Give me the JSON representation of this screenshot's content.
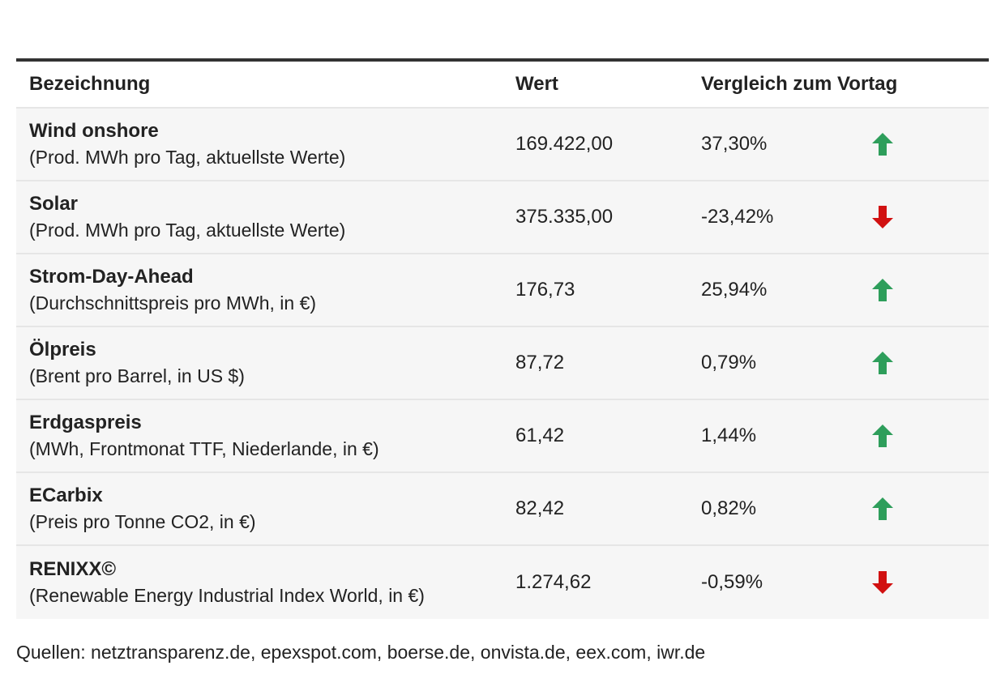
{
  "chart_data": {
    "type": "table",
    "columns": [
      "Bezeichnung",
      "Wert",
      "Vergleich zum Vortag"
    ],
    "rows": [
      {
        "name": "Wind onshore",
        "sub": "(Prod. MWh pro Tag, aktuellste Werte)",
        "value": "169.422,00",
        "change": "37,30%",
        "direction": "up"
      },
      {
        "name": "Solar",
        "sub": "(Prod. MWh pro Tag, aktuellste Werte)",
        "value": "375.335,00",
        "change": "-23,42%",
        "direction": "down"
      },
      {
        "name": "Strom-Day-Ahead",
        "sub": "(Durchschnittspreis pro MWh, in €)",
        "value": "176,73",
        "change": "25,94%",
        "direction": "up"
      },
      {
        "name": "Ölpreis",
        "sub": "(Brent pro Barrel, in US $)",
        "value": "87,72",
        "change": "0,79%",
        "direction": "up"
      },
      {
        "name": "Erdgaspreis",
        "sub": "(MWh, Frontmonat TTF, Niederlande, in €)",
        "value": "61,42",
        "change": "1,44%",
        "direction": "up"
      },
      {
        "name": "ECarbix",
        "sub": "(Preis pro Tonne CO2, in €)",
        "value": "82,42",
        "change": "0,82%",
        "direction": "up"
      },
      {
        "name": "RENIXX©",
        "sub": "(Renewable Energy Industrial Index World, in €)",
        "value": "1.274,62",
        "change": "-0,59%",
        "direction": "down"
      }
    ],
    "source": "Quellen: netztransparenz.de, epexspot.com, boerse.de, onvista.de, eex.com, iwr.de"
  },
  "colors": {
    "up": "#2e9e5b",
    "down": "#d11111"
  }
}
